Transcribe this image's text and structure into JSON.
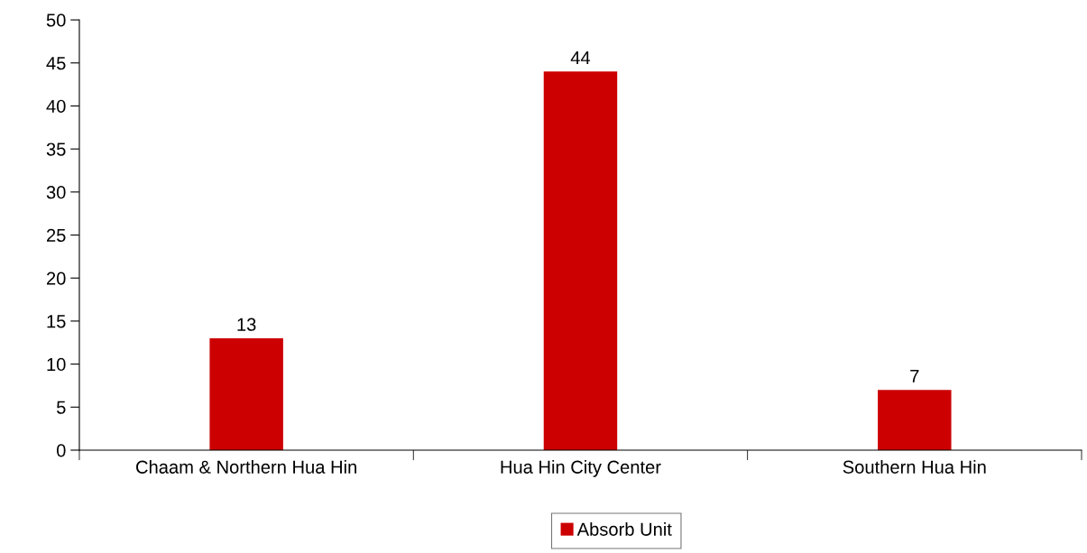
{
  "chart_data": {
    "type": "bar",
    "categories": [
      "Chaam & Northern Hua Hin",
      "Hua Hin City Center",
      "Southern Hua Hin"
    ],
    "series": [
      {
        "name": "Absorb Unit",
        "color": "#cc0000",
        "values": [
          13,
          44,
          7
        ]
      }
    ],
    "ylim": [
      0,
      50
    ],
    "yticks": [
      0,
      5,
      10,
      15,
      20,
      25,
      30,
      35,
      40,
      45,
      50
    ],
    "data_labels": true,
    "legend": "bottom",
    "grid": false
  }
}
